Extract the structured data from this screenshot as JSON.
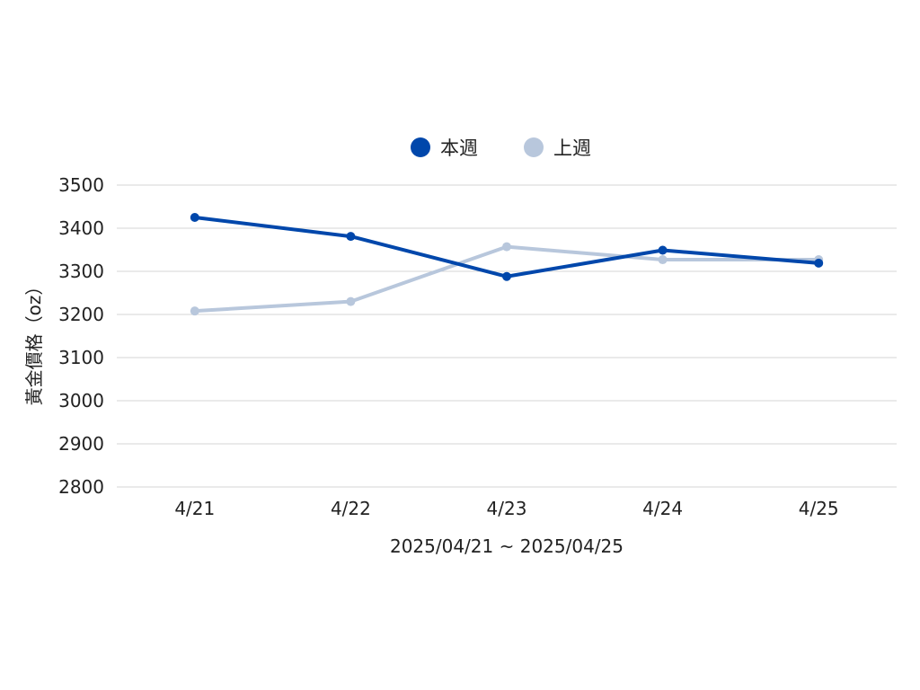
{
  "chart_data": {
    "type": "line",
    "categories": [
      "4/21",
      "4/22",
      "4/23",
      "4/24",
      "4/25"
    ],
    "series": [
      {
        "name": "本週",
        "color": "#0047AB",
        "values": [
          3425,
          3381,
          3288,
          3349,
          3319
        ]
      },
      {
        "name": "上週",
        "color": "#B8C7DC",
        "values": [
          3208,
          3230,
          3357,
          3327,
          3327
        ]
      }
    ],
    "xlabel": "2025/04/21 ~ 2025/04/25",
    "ylabel": "黃金價格（oz）",
    "ylim": [
      2800,
      3500
    ],
    "yticks": [
      2800,
      2900,
      3000,
      3100,
      3200,
      3300,
      3400,
      3500
    ],
    "grid": true,
    "legend_position": "top-center"
  }
}
